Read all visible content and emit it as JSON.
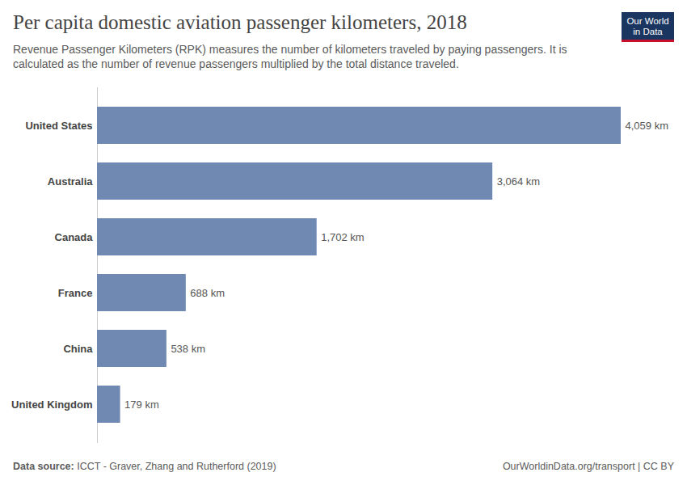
{
  "chart_data": {
    "type": "bar",
    "orientation": "horizontal",
    "title": "Per capita domestic aviation passenger kilometers, 2018",
    "subtitle": "Revenue Passenger Kilometers (RPK) measures the number of kilometers traveled by paying passengers. It is calculated as the number of revenue passengers multiplied by the total distance traveled.",
    "categories": [
      "United States",
      "Australia",
      "Canada",
      "France",
      "China",
      "United Kingdom"
    ],
    "values": [
      4059,
      3064,
      1702,
      688,
      538,
      179
    ],
    "value_labels": [
      "4,059 km",
      "3,064 km",
      "1,702 km",
      "688 km",
      "538 km",
      "179 km"
    ],
    "data_labels": true,
    "color": "#7089b2",
    "xlim": [
      0,
      4059
    ],
    "grid": false,
    "tick_labels": "y",
    "source_label": "Data source:",
    "source": "ICCT - Graver, Zhang and Rutherford (2019)",
    "url": "OurWorldinData.org/transport | CC BY",
    "logo": [
      "Our World",
      "in Data"
    ]
  }
}
